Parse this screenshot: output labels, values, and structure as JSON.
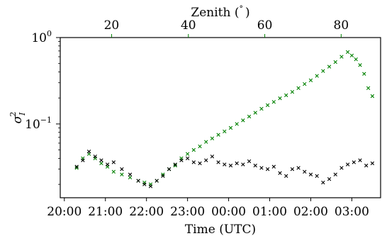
{
  "chart_data": {
    "type": "scatter",
    "xlabel": "Time (UTC)",
    "ylabel": "σ²_I",
    "ylabel_symbol": "σ",
    "ylabel_superscript": "2",
    "ylabel_subscript": "I",
    "x_tick_labels": [
      "20:00",
      "21:00",
      "22:00",
      "23:00",
      "00:00",
      "01:00",
      "02:00",
      "03:00"
    ],
    "x_ticks_hours": [
      0,
      1,
      2,
      3,
      4,
      5,
      6,
      7
    ],
    "xlim_hours_since_2000": [
      -0.1,
      7.7
    ],
    "y_scale": "log",
    "ylim": [
      0.014,
      1.0
    ],
    "y_major_ticks": [
      {
        "value": 0.1,
        "base": "10",
        "exponent": "−1"
      },
      {
        "value": 1.0,
        "base": "10",
        "exponent": "0"
      }
    ],
    "top_axis": {
      "label": "Zenith (°)",
      "label_main": "Zenith (",
      "label_unit": "°",
      "label_close": ")",
      "color": "#008000",
      "tick_labels": [
        "20",
        "40",
        "60",
        "80"
      ],
      "tick_hours": [
        1.15,
        3.02,
        4.88,
        6.74
      ]
    },
    "marker": "x",
    "series": [
      {
        "color": "#008000",
        "points": [
          [
            0.3,
            0.031
          ],
          [
            0.45,
            0.04
          ],
          [
            0.6,
            0.045
          ],
          [
            0.75,
            0.04
          ],
          [
            0.9,
            0.035
          ],
          [
            1.05,
            0.032
          ],
          [
            1.2,
            0.028
          ],
          [
            1.4,
            0.026
          ],
          [
            1.6,
            0.024
          ],
          [
            1.8,
            0.022
          ],
          [
            1.95,
            0.021
          ],
          [
            2.1,
            0.02
          ],
          [
            2.25,
            0.022
          ],
          [
            2.4,
            0.026
          ],
          [
            2.55,
            0.03
          ],
          [
            2.7,
            0.033
          ],
          [
            2.85,
            0.04
          ],
          [
            3.0,
            0.045
          ],
          [
            3.15,
            0.05
          ],
          [
            3.3,
            0.055
          ],
          [
            3.45,
            0.062
          ],
          [
            3.6,
            0.068
          ],
          [
            3.75,
            0.075
          ],
          [
            3.9,
            0.082
          ],
          [
            4.05,
            0.09
          ],
          [
            4.2,
            0.1
          ],
          [
            4.35,
            0.11
          ],
          [
            4.5,
            0.122
          ],
          [
            4.65,
            0.135
          ],
          [
            4.8,
            0.15
          ],
          [
            4.95,
            0.165
          ],
          [
            5.1,
            0.18
          ],
          [
            5.25,
            0.198
          ],
          [
            5.4,
            0.215
          ],
          [
            5.55,
            0.235
          ],
          [
            5.7,
            0.26
          ],
          [
            5.85,
            0.29
          ],
          [
            6.0,
            0.32
          ],
          [
            6.15,
            0.36
          ],
          [
            6.3,
            0.41
          ],
          [
            6.45,
            0.46
          ],
          [
            6.6,
            0.52
          ],
          [
            6.75,
            0.6
          ],
          [
            6.9,
            0.68
          ],
          [
            7.0,
            0.62
          ],
          [
            7.1,
            0.56
          ],
          [
            7.2,
            0.48
          ],
          [
            7.3,
            0.38
          ],
          [
            7.4,
            0.26
          ],
          [
            7.5,
            0.21
          ]
        ]
      },
      {
        "color": "#000000",
        "points": [
          [
            0.3,
            0.032
          ],
          [
            0.45,
            0.038
          ],
          [
            0.6,
            0.048
          ],
          [
            0.75,
            0.042
          ],
          [
            0.9,
            0.038
          ],
          [
            1.05,
            0.034
          ],
          [
            1.2,
            0.036
          ],
          [
            1.4,
            0.03
          ],
          [
            1.6,
            0.026
          ],
          [
            1.8,
            0.022
          ],
          [
            1.95,
            0.02
          ],
          [
            2.1,
            0.019
          ],
          [
            2.25,
            0.022
          ],
          [
            2.4,
            0.025
          ],
          [
            2.55,
            0.03
          ],
          [
            2.7,
            0.034
          ],
          [
            2.85,
            0.038
          ],
          [
            3.0,
            0.04
          ],
          [
            3.15,
            0.036
          ],
          [
            3.3,
            0.035
          ],
          [
            3.45,
            0.038
          ],
          [
            3.6,
            0.042
          ],
          [
            3.75,
            0.036
          ],
          [
            3.9,
            0.034
          ],
          [
            4.05,
            0.033
          ],
          [
            4.2,
            0.035
          ],
          [
            4.35,
            0.034
          ],
          [
            4.5,
            0.037
          ],
          [
            4.65,
            0.033
          ],
          [
            4.8,
            0.031
          ],
          [
            4.95,
            0.03
          ],
          [
            5.1,
            0.032
          ],
          [
            5.25,
            0.027
          ],
          [
            5.4,
            0.025
          ],
          [
            5.55,
            0.03
          ],
          [
            5.7,
            0.031
          ],
          [
            5.85,
            0.028
          ],
          [
            6.0,
            0.026
          ],
          [
            6.15,
            0.025
          ],
          [
            6.3,
            0.021
          ],
          [
            6.45,
            0.023
          ],
          [
            6.6,
            0.026
          ],
          [
            6.75,
            0.031
          ],
          [
            6.9,
            0.034
          ],
          [
            7.05,
            0.036
          ],
          [
            7.2,
            0.038
          ],
          [
            7.35,
            0.033
          ],
          [
            7.5,
            0.035
          ]
        ]
      }
    ]
  }
}
